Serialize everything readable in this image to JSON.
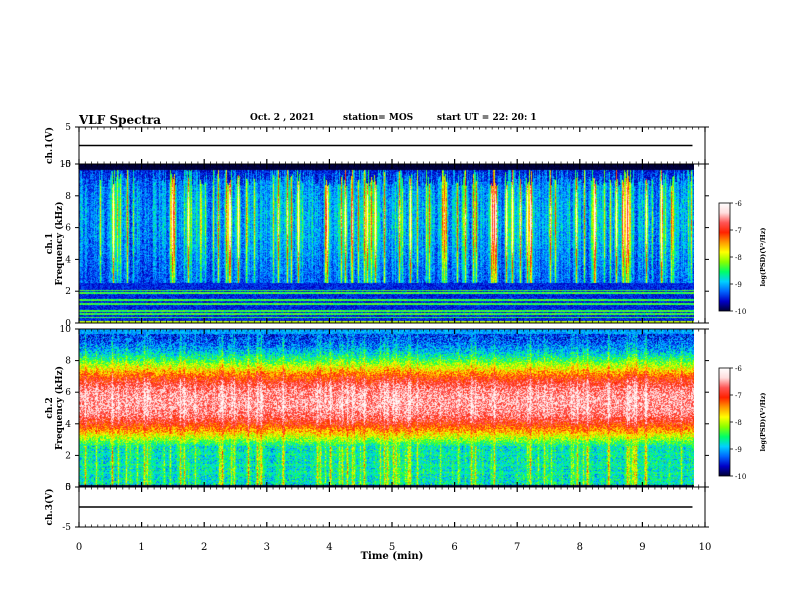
{
  "header": {
    "title": "VLF Spectra",
    "date": "Oct. 2 , 2021",
    "station": "station= MOS",
    "start": "start  UT =   22: 20: 1"
  },
  "colorscale": {
    "stops": [
      "#000033",
      "#0000c8",
      "#0066ff",
      "#00d0ff",
      "#00ff66",
      "#88ff00",
      "#ffff00",
      "#ff9900",
      "#ff2200",
      "#ff5555",
      "#ffdddd",
      "#ffffff"
    ],
    "label": "log(PSD)(V²/Hz)",
    "ticks": [
      -10,
      -9,
      -8,
      -7,
      -6
    ],
    "range": [
      -10,
      -6
    ]
  },
  "chart_data": [
    {
      "type": "line",
      "panel": "ch1-waveform",
      "ylabel": "ch.1(V)",
      "ylim": [
        -5,
        5
      ],
      "yticks": [
        -5,
        5
      ],
      "xlim": [
        0,
        10
      ],
      "series": [
        {
          "x": [
            0,
            9.8
          ],
          "y": [
            0.0,
            0.0
          ]
        }
      ]
    },
    {
      "type": "heatmap",
      "panel": "ch1-spectrogram",
      "ylabel": "ch.1\nFrequency (kHz)",
      "ylim": [
        0,
        10
      ],
      "yticks": [
        0,
        2,
        4,
        6,
        8,
        10
      ],
      "xlim": [
        0,
        10
      ],
      "data_extent_x": [
        0,
        9.82
      ],
      "background_log_psd": -9.8,
      "notes": "broadband vertical bursts from ~2 to 10 kHz across the record, horizontal narrowband lines below 2 kHz"
    },
    {
      "type": "heatmap",
      "panel": "ch2-spectrogram",
      "ylabel": "ch.2\nFrequency (kHz)",
      "ylim": [
        0,
        10
      ],
      "yticks": [
        0,
        2,
        4,
        6,
        8,
        10
      ],
      "xlim": [
        0,
        10
      ],
      "data_extent_x": [
        0,
        9.82
      ],
      "band_center_khz": 5.4,
      "band_peak_log_psd": -6.6,
      "notes": "strong emission band between ~3 and ~8 kHz"
    },
    {
      "type": "line",
      "panel": "ch3-waveform",
      "ylabel": "ch.3(V)",
      "xlabel": "Time (min)",
      "ylim": [
        -5,
        5
      ],
      "yticks": [
        -5,
        5
      ],
      "xlim": [
        0,
        10
      ],
      "xticks": [
        0,
        1,
        2,
        3,
        4,
        5,
        6,
        7,
        8,
        9,
        10
      ],
      "series": [
        {
          "x": [
            0,
            9.8
          ],
          "y": [
            0.0,
            0.0
          ]
        }
      ]
    }
  ]
}
